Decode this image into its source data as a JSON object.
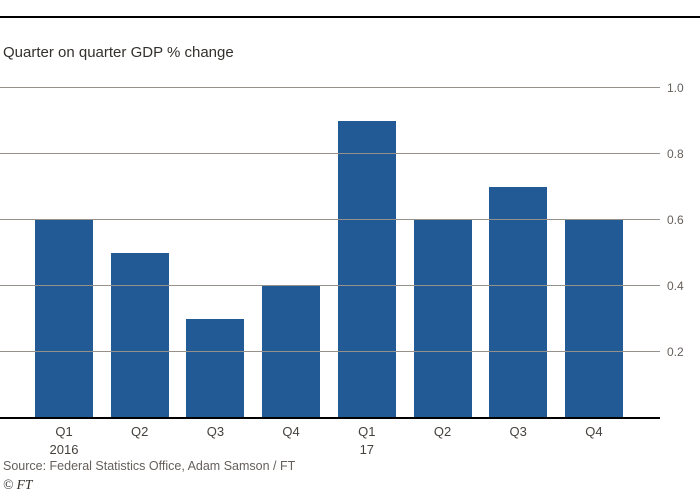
{
  "chart": {
    "title": "Quarter on quarter GDP % change",
    "source": "Source: Federal Statistics Office, Adam Samson / FT",
    "credit": "© FT",
    "bar_color": "#215a94",
    "grid_color": "#96918b"
  },
  "chart_data": {
    "type": "bar",
    "title": "Quarter on quarter GDP % change",
    "categories": [
      "Q1",
      "Q2",
      "Q3",
      "Q4",
      "Q1",
      "Q2",
      "Q3",
      "Q4"
    ],
    "category_sublabels": [
      "2016",
      "",
      "",
      "",
      "17",
      "",
      "",
      ""
    ],
    "values": [
      0.6,
      0.5,
      0.3,
      0.4,
      0.9,
      0.6,
      0.7,
      0.6
    ],
    "xlabel": "",
    "ylabel": "",
    "ylim": [
      0,
      1.0
    ],
    "yticks": [
      0.2,
      0.4,
      0.6,
      0.8,
      1.0
    ],
    "ytick_labels": [
      "0.2",
      "0.4",
      "0.6",
      "0.8",
      "1.0"
    ],
    "ytick_side": "right",
    "grid": true,
    "legend": "none",
    "source": "Source: Federal Statistics Office, Adam Samson / FT"
  }
}
